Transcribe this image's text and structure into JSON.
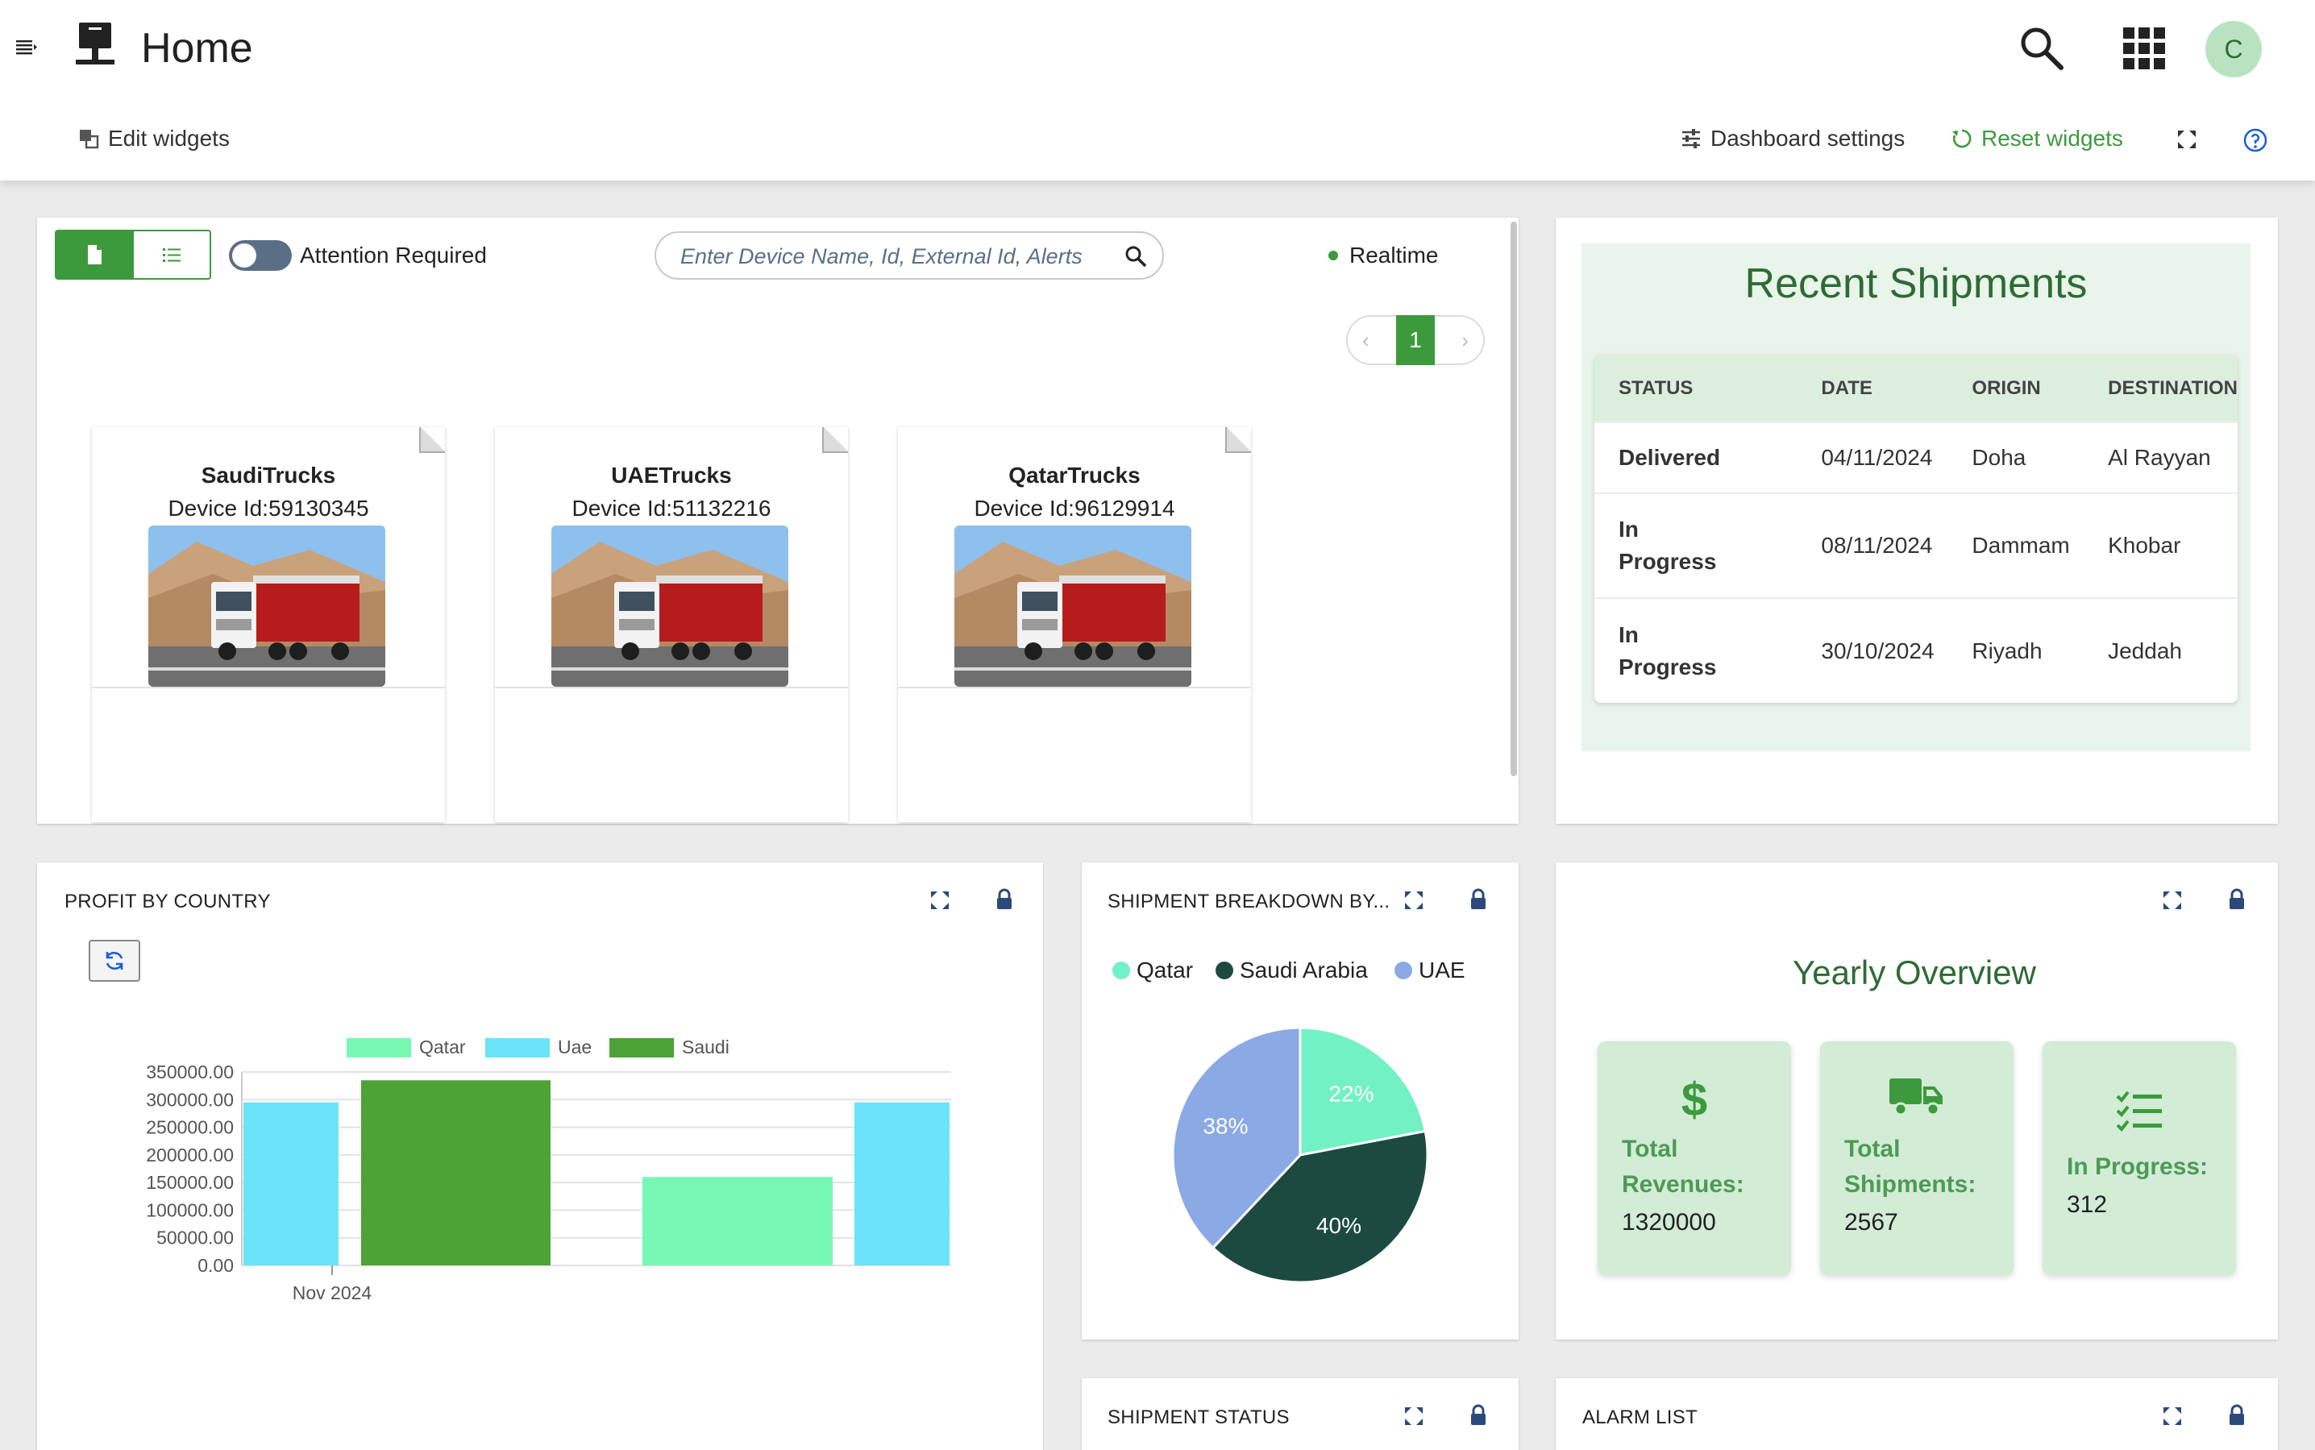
{
  "header": {
    "title": "Home",
    "user_initial": "C",
    "edit_widgets": "Edit widgets",
    "dashboard_settings": "Dashboard settings",
    "reset_widgets": "Reset widgets"
  },
  "devices_widget": {
    "attention_label": "Attention Required",
    "search_placeholder": "Enter Device Name, Id, External Id, Alerts",
    "realtime_label": "Realtime",
    "current_page": "1",
    "devices": [
      {
        "name": "SaudiTrucks",
        "id": "Device Id:59130345"
      },
      {
        "name": "UAETrucks",
        "id": "Device Id:51132216"
      },
      {
        "name": "QatarTrucks",
        "id": "Device Id:96129914"
      }
    ]
  },
  "recent_shipments": {
    "title": "Recent Shipments",
    "columns": [
      "STATUS",
      "DATE",
      "ORIGIN",
      "DESTINATION"
    ],
    "rows": [
      {
        "status": "Delivered",
        "date": "04/11/2024",
        "origin": "Doha",
        "destination": "Al Rayyan"
      },
      {
        "status": "In Progress",
        "date": "08/11/2024",
        "origin": "Dammam",
        "destination": "Khobar"
      },
      {
        "status": "In Progress",
        "date": "30/10/2024",
        "origin": "Riyadh",
        "destination": "Jeddah"
      }
    ]
  },
  "profit_widget": {
    "title": "PROFIT BY COUNTRY"
  },
  "shipment_breakdown_widget": {
    "title": "SHIPMENT BREAKDOWN BY..."
  },
  "yearly_overview": {
    "title": "Yearly Overview",
    "kpis": [
      {
        "label_line1": "Total",
        "label_line2": "Revenues:",
        "value": "1320000",
        "icon": "dollar-icon"
      },
      {
        "label_line1": "Total",
        "label_line2": "Shipments:",
        "value": "2567",
        "icon": "truck-icon"
      },
      {
        "label_line1": "In Progress:",
        "label_line2": "",
        "value": "312",
        "icon": "checklist-icon"
      }
    ]
  },
  "shipment_status_widget": {
    "title": "SHIPMENT STATUS"
  },
  "alarm_list_widget": {
    "title": "ALARM LIST"
  },
  "colors": {
    "primary_green": "#3c9a3c",
    "dark_green_text": "#2e6b35",
    "in_progress": "#f2b02e",
    "qatar": "#76f8b4",
    "uae": "#6ae4f8",
    "saudi": "#4da336",
    "pie_qatar": "#72f1c4",
    "pie_saudi": "#1c4a40",
    "pie_uae": "#8ba9e4"
  },
  "chart_data": [
    {
      "type": "bar",
      "categories": [
        "Nov 2024"
      ],
      "series": [
        {
          "name": "Qatar",
          "values": [
            160000
          ]
        },
        {
          "name": "Uae",
          "values": [
            295000
          ]
        },
        {
          "name": "Saudi",
          "values": [
            335000
          ]
        }
      ],
      "legend_labels": [
        "Qatar",
        "Uae",
        "Saudi"
      ],
      "y_ticks": [
        "0.00",
        "50000.00",
        "100000.00",
        "150000.00",
        "200000.00",
        "250000.00",
        "300000.00",
        "350000.00"
      ],
      "ylim": [
        0,
        350000
      ],
      "grid": true,
      "legend_position": "top"
    },
    {
      "type": "pie",
      "labels": [
        "Qatar",
        "Saudi Arabia",
        "UAE"
      ],
      "values": [
        22,
        40,
        38
      ],
      "value_labels": [
        "22%",
        "40%",
        "38%"
      ],
      "legend_position": "top"
    }
  ]
}
